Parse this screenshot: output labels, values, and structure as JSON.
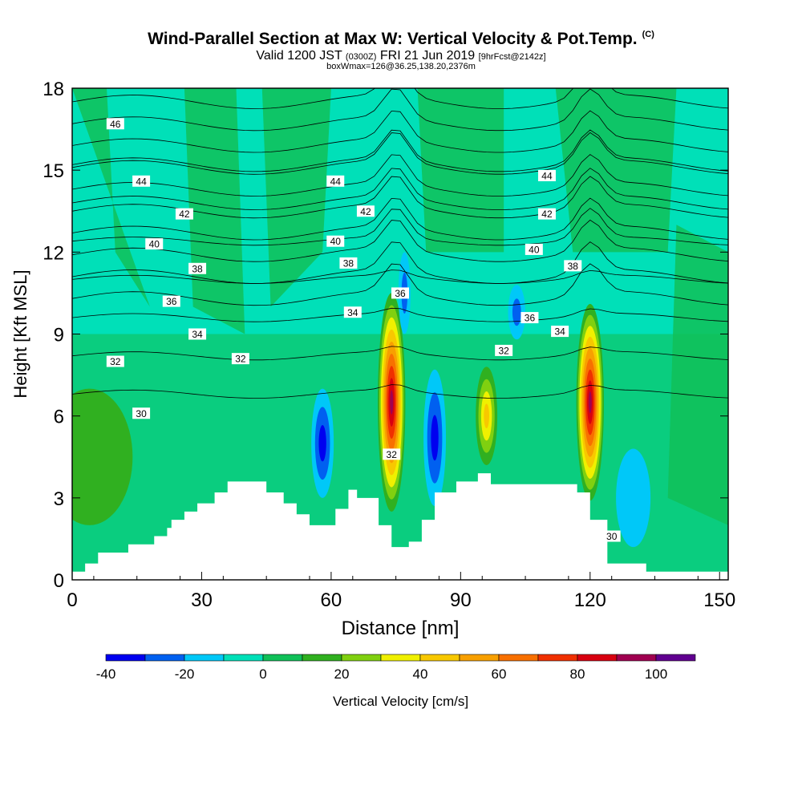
{
  "title": {
    "main": "Wind-Parallel Section at Max W: Vertical Velocity & Pot.Temp.",
    "copyright": "(C)",
    "valid_main": "Valid 1200 JST",
    "valid_utc": "(0300Z)",
    "valid_date": "FRI 21 Jun 2019",
    "forecast": "[9hrFcst@2142z]",
    "box": "boxWmax=126@36.25,138.20,2376m"
  },
  "colors": {
    "background_fill": "#00e0b8",
    "frame": "#000000",
    "terrain": "#ffffff"
  },
  "chart_data": {
    "type": "contour",
    "xlabel": "Distance [nm]",
    "ylabel": "Height [Kft MSL]",
    "xlim": [
      0,
      152
    ],
    "ylim": [
      0,
      18
    ],
    "x_ticks": [
      0,
      30,
      60,
      90,
      120,
      150
    ],
    "y_ticks": [
      0,
      3,
      6,
      9,
      12,
      15,
      18
    ],
    "colorbar": {
      "label": "Vertical Velocity [cm/s]",
      "tick_labels": [
        "-40",
        "-20",
        "0",
        "20",
        "40",
        "60",
        "80",
        "100"
      ],
      "tick_values": [
        -40,
        -20,
        0,
        20,
        40,
        60,
        80,
        100
      ],
      "levels": [
        -40,
        -30,
        -20,
        -10,
        0,
        10,
        20,
        30,
        40,
        50,
        60,
        70,
        80,
        90,
        100,
        110
      ],
      "colors": [
        "#0000f0",
        "#0060f0",
        "#00c8f8",
        "#00e0b8",
        "#10c058",
        "#30b020",
        "#80d010",
        "#f0f000",
        "#f8c800",
        "#f8a000",
        "#f87000",
        "#f03000",
        "#d80010",
        "#a00050",
        "#600090"
      ]
    },
    "terrain_profile": {
      "x": [
        0,
        3,
        3,
        6,
        6,
        7,
        7,
        13,
        13,
        19,
        19,
        22,
        22,
        23,
        23,
        26,
        26,
        29,
        29,
        33,
        33,
        36,
        36,
        45,
        45,
        49,
        49,
        52,
        52,
        55,
        55,
        61,
        61,
        64,
        64,
        66,
        66,
        71,
        71,
        74,
        74,
        78,
        78,
        81,
        81,
        84,
        84,
        89,
        89,
        94,
        94,
        97,
        97,
        117,
        117,
        120,
        120,
        124,
        124,
        133,
        133,
        146,
        146,
        152
      ],
      "height": [
        0.3,
        0.3,
        0.6,
        0.6,
        1.0,
        1.0,
        1.0,
        1.0,
        1.3,
        1.3,
        1.6,
        1.6,
        1.9,
        1.9,
        2.2,
        2.2,
        2.5,
        2.5,
        2.8,
        2.8,
        3.2,
        3.2,
        3.6,
        3.6,
        3.2,
        3.2,
        2.8,
        2.8,
        2.4,
        2.4,
        2.0,
        2.0,
        2.6,
        2.6,
        3.3,
        3.3,
        3.0,
        3.0,
        2.0,
        2.0,
        1.2,
        1.2,
        1.4,
        1.4,
        2.2,
        2.2,
        3.2,
        3.2,
        3.6,
        3.6,
        3.9,
        3.9,
        3.5,
        3.5,
        3.2,
        3.2,
        2.2,
        2.2,
        0.6,
        0.6,
        0.3,
        0.3,
        0.3,
        0.3
      ]
    },
    "vertical_velocity_features": [
      {
        "x": 74,
        "y": 6.5,
        "rx": 3.2,
        "ry": 4.0,
        "peak": 95,
        "label": "updraft"
      },
      {
        "x": 120,
        "y": 6.5,
        "rx": 3.2,
        "ry": 3.6,
        "peak": 95,
        "label": "updraft"
      },
      {
        "x": 96,
        "y": 6.0,
        "rx": 2.5,
        "ry": 1.8,
        "peak": 40,
        "label": "updraft"
      },
      {
        "x": 4,
        "y": 4.5,
        "rx": 10,
        "ry": 2.5,
        "peak": 12,
        "label": "weak lift"
      },
      {
        "x": 58,
        "y": 5.0,
        "rx": 2.6,
        "ry": 2.0,
        "peak": -35,
        "label": "downdraft"
      },
      {
        "x": 84,
        "y": 5.2,
        "rx": 2.6,
        "ry": 2.5,
        "peak": -35,
        "label": "downdraft"
      },
      {
        "x": 77,
        "y": 10.5,
        "rx": 1.4,
        "ry": 1.5,
        "peak": -25,
        "label": "downdraft"
      },
      {
        "x": 103,
        "y": 9.8,
        "rx": 2.0,
        "ry": 1.0,
        "peak": -25,
        "label": "downdraft"
      },
      {
        "x": 130,
        "y": 3.0,
        "rx": 4.0,
        "ry": 1.8,
        "peak": -15,
        "label": "downdraft"
      }
    ],
    "theta_contours_labels": [
      {
        "value": 46,
        "x": 10,
        "y": 16.7
      },
      {
        "value": 44,
        "x": 16,
        "y": 14.6
      },
      {
        "value": 44,
        "x": 61,
        "y": 14.6
      },
      {
        "value": 44,
        "x": 110,
        "y": 14.8
      },
      {
        "value": 42,
        "x": 26,
        "y": 13.4
      },
      {
        "value": 42,
        "x": 68,
        "y": 13.5
      },
      {
        "value": 42,
        "x": 110,
        "y": 13.4
      },
      {
        "value": 40,
        "x": 19,
        "y": 12.3
      },
      {
        "value": 40,
        "x": 61,
        "y": 12.4
      },
      {
        "value": 40,
        "x": 107,
        "y": 12.1
      },
      {
        "value": 38,
        "x": 29,
        "y": 11.4
      },
      {
        "value": 38,
        "x": 64,
        "y": 11.6
      },
      {
        "value": 38,
        "x": 116,
        "y": 11.5
      },
      {
        "value": 36,
        "x": 23,
        "y": 10.2
      },
      {
        "value": 36,
        "x": 76,
        "y": 10.5
      },
      {
        "value": 36,
        "x": 106,
        "y": 9.6
      },
      {
        "value": 34,
        "x": 29,
        "y": 9.0
      },
      {
        "value": 34,
        "x": 65,
        "y": 9.8
      },
      {
        "value": 34,
        "x": 113,
        "y": 9.1
      },
      {
        "value": 32,
        "x": 10,
        "y": 8.0
      },
      {
        "value": 32,
        "x": 39,
        "y": 8.1
      },
      {
        "value": 32,
        "x": 100,
        "y": 8.4
      },
      {
        "value": 32,
        "x": 74,
        "y": 4.6
      },
      {
        "value": 30,
        "x": 16,
        "y": 6.1
      },
      {
        "value": 30,
        "x": 125,
        "y": 1.6
      }
    ],
    "theta_levels": [
      30,
      31,
      32,
      33,
      34,
      35,
      36,
      37,
      38,
      39,
      40,
      41,
      42,
      43,
      44,
      45,
      46
    ]
  }
}
